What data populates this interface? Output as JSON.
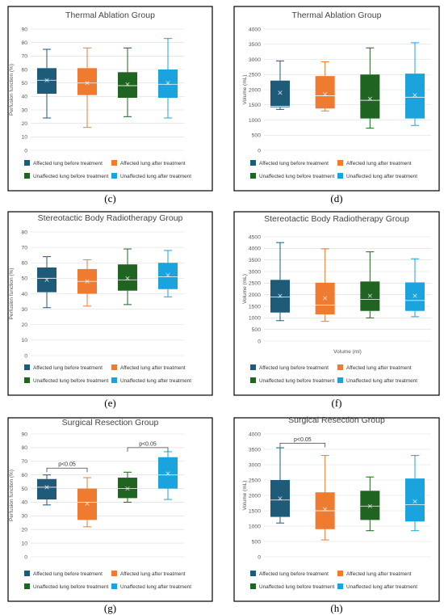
{
  "figure": {
    "colors": [
      "#1d5b79",
      "#ee7b30",
      "#1f6420",
      "#1aa3dc"
    ]
  },
  "chart_data": [
    {
      "id": "c",
      "type": "box",
      "panel_label": "(c)",
      "title": "Thermal Ablation Group",
      "ylabel": "Perfusion function (%)",
      "xlabel": "",
      "ylim": [
        0,
        90
      ],
      "ystep": 10,
      "grid": true,
      "legend": "bottom",
      "series": [
        {
          "name": "Affected lung before treatment",
          "min": 24,
          "q1": 42,
          "median": 52,
          "q3": 61,
          "max": 75,
          "mean": 52
        },
        {
          "name": "Affected lung after treatment",
          "min": 17,
          "q1": 41,
          "median": 50,
          "q3": 61,
          "max": 76,
          "mean": 50
        },
        {
          "name": "Unaffected lung before treatment",
          "min": 25,
          "q1": 39,
          "median": 48,
          "q3": 58,
          "max": 76,
          "mean": 49
        },
        {
          "name": "Unaffected lung after treatment",
          "min": 24,
          "q1": 39,
          "median": 49,
          "q3": 60,
          "max": 83,
          "mean": 50
        }
      ],
      "annotations": []
    },
    {
      "id": "d",
      "type": "box",
      "panel_label": "(d)",
      "title": "Thermal Ablation Group",
      "ylabel": "Volume (mL)",
      "xlabel": "",
      "ylim": [
        0,
        4000
      ],
      "ystep": 500,
      "grid": true,
      "legend": "bottom",
      "series": [
        {
          "name": "Affected lung before treatment",
          "min": 1350,
          "q1": 1420,
          "median": 1450,
          "q3": 2300,
          "max": 2950,
          "mean": 1900
        },
        {
          "name": "Affected lung after treatment",
          "min": 1300,
          "q1": 1380,
          "median": 1800,
          "q3": 2450,
          "max": 2920,
          "mean": 1850
        },
        {
          "name": "Unaffected lung before treatment",
          "min": 730,
          "q1": 1050,
          "median": 1650,
          "q3": 2500,
          "max": 3380,
          "mean": 1700
        },
        {
          "name": "Unaffected lung after treatment",
          "min": 820,
          "q1": 1050,
          "median": 1750,
          "q3": 2530,
          "max": 3550,
          "mean": 1820
        }
      ],
      "annotations": []
    },
    {
      "id": "e",
      "type": "box",
      "panel_label": "(e)",
      "title": "Stereotactic Body Radiotherapy Group",
      "ylabel": "Perfusion function (%)",
      "xlabel": "",
      "ylim": [
        0,
        80
      ],
      "ystep": 10,
      "grid": true,
      "legend": "bottom",
      "series": [
        {
          "name": "Affected lung before treatment",
          "min": 31,
          "q1": 41,
          "median": 50,
          "q3": 57,
          "max": 64,
          "mean": 49
        },
        {
          "name": "Affected lung after treatment",
          "min": 32,
          "q1": 40,
          "median": 48,
          "q3": 56,
          "max": 62,
          "mean": 48
        },
        {
          "name": "Unaffected lung before treatment",
          "min": 33,
          "q1": 42,
          "median": 49,
          "q3": 59,
          "max": 69,
          "mean": 50
        },
        {
          "name": "Unaffected lung after treatment",
          "min": 38,
          "q1": 43,
          "median": 51,
          "q3": 60,
          "max": 68,
          "mean": 52
        }
      ],
      "annotations": []
    },
    {
      "id": "f",
      "type": "box",
      "panel_label": "(f)",
      "title": "Stereotactic Body Radiotherapy Group",
      "ylabel": "Volume (mL)",
      "xlabel": "Volume (ml)",
      "ylim": [
        0,
        4500
      ],
      "ystep": 500,
      "grid": true,
      "legend": "bottom",
      "series": [
        {
          "name": "Affected lung before treatment",
          "min": 880,
          "q1": 1230,
          "median": 1900,
          "q3": 2640,
          "max": 4250,
          "mean": 1950
        },
        {
          "name": "Affected lung after treatment",
          "min": 850,
          "q1": 1150,
          "median": 1550,
          "q3": 2520,
          "max": 3980,
          "mean": 1850
        },
        {
          "name": "Unaffected lung before treatment",
          "min": 1000,
          "q1": 1300,
          "median": 1800,
          "q3": 2570,
          "max": 3850,
          "mean": 1950
        },
        {
          "name": "Unaffected lung after treatment",
          "min": 1050,
          "q1": 1300,
          "median": 1750,
          "q3": 2530,
          "max": 3550,
          "mean": 1950
        }
      ],
      "annotations": []
    },
    {
      "id": "g",
      "type": "box",
      "panel_label": "(g)",
      "title": "Surgical Resection Group",
      "ylabel": "Perfusion function (%)",
      "xlabel": "",
      "ylim": [
        0,
        90
      ],
      "ystep": 10,
      "grid": true,
      "legend": "bottom",
      "series": [
        {
          "name": "Affected lung before treatment",
          "min": 38,
          "q1": 42,
          "median": 51,
          "q3": 57,
          "max": 60,
          "mean": 51
        },
        {
          "name": "Affected lung after treatment",
          "min": 22,
          "q1": 27,
          "median": 40,
          "q3": 50,
          "max": 58,
          "mean": 39
        },
        {
          "name": "Unaffected lung before treatment",
          "min": 40,
          "q1": 43,
          "median": 50,
          "q3": 58,
          "max": 62,
          "mean": 50
        },
        {
          "name": "Unaffected lung after treatment",
          "min": 42,
          "q1": 50,
          "median": 60,
          "q3": 73,
          "max": 77,
          "mean": 61
        }
      ],
      "annotations": [
        {
          "text": "p<0.05",
          "from": 0,
          "to": 1,
          "y": 65
        },
        {
          "text": "p<0.05",
          "from": 2,
          "to": 3,
          "y": 80
        }
      ]
    },
    {
      "id": "h",
      "type": "box",
      "panel_label": "(h)",
      "title": "Surgical Resection Group",
      "ylabel": "Volume (mL)",
      "xlabel": "",
      "ylim": [
        0,
        4000
      ],
      "ystep": 500,
      "grid": true,
      "legend": "bottom",
      "series": [
        {
          "name": "Affected lung before treatment",
          "min": 1100,
          "q1": 1300,
          "median": 1850,
          "q3": 2500,
          "max": 3550,
          "mean": 1900
        },
        {
          "name": "Affected lung after treatment",
          "min": 550,
          "q1": 900,
          "median": 1500,
          "q3": 2100,
          "max": 3300,
          "mean": 1550
        },
        {
          "name": "Unaffected lung before treatment",
          "min": 850,
          "q1": 1200,
          "median": 1650,
          "q3": 2150,
          "max": 2600,
          "mean": 1650
        },
        {
          "name": "Unaffected lung after treatment",
          "min": 850,
          "q1": 1150,
          "median": 1700,
          "q3": 2550,
          "max": 3300,
          "mean": 1800
        }
      ],
      "annotations": [
        {
          "text": "p<0.05",
          "from": 0,
          "to": 1,
          "y": 3700
        }
      ]
    }
  ]
}
